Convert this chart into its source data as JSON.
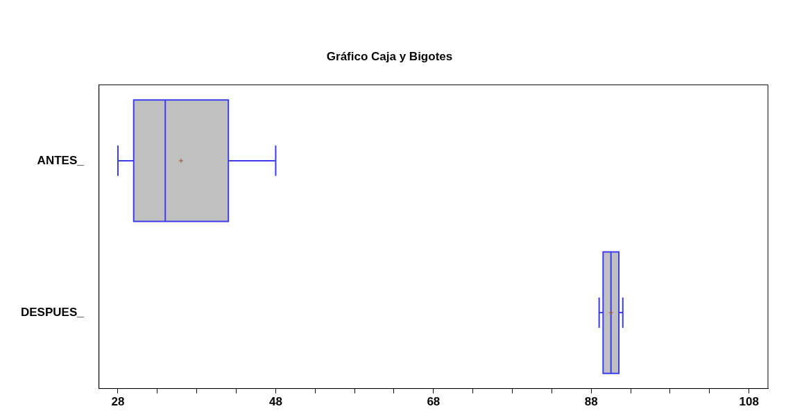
{
  "chart_data": {
    "type": "box",
    "title": "Gráfico Caja y Bigotes",
    "orientation": "horizontal",
    "categories": [
      "ANTES_",
      "DESPUES_"
    ],
    "series": [
      {
        "color": "#c0c0c0",
        "boxes": [
          {
            "low": 28,
            "q1": 30,
            "median": 34,
            "q3": 42,
            "high": 48,
            "mean": 36
          },
          {
            "low": 89,
            "q1": 89.5,
            "median": 90.5,
            "q3": 91.5,
            "high": 92,
            "mean": 90.5
          }
        ]
      }
    ],
    "xlim": [
      25.6,
      110.4
    ],
    "xticks": [
      28,
      {
        "value": 33,
        "label": null
      },
      {
        "value": 38,
        "label": null
      },
      {
        "value": 43,
        "label": null
      },
      48,
      {
        "value": 53,
        "label": null
      },
      {
        "value": 58,
        "label": null
      },
      {
        "value": 63,
        "label": null
      },
      68,
      {
        "value": 73,
        "label": null
      },
      {
        "value": 78,
        "label": null
      },
      {
        "value": 83,
        "label": null
      },
      88,
      {
        "value": 93,
        "label": null
      },
      {
        "value": 98,
        "label": null
      },
      {
        "value": 103,
        "label": null
      },
      108
    ],
    "grid": false,
    "legend": false
  }
}
